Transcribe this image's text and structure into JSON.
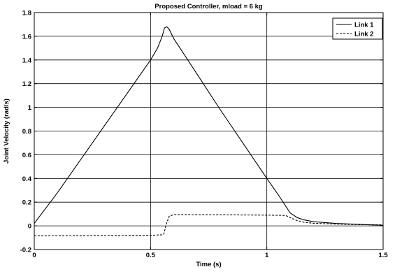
{
  "chart_data": {
    "type": "line",
    "title": "Proposed Controller, mload = 6 kg",
    "xlabel": "Time (s)",
    "ylabel": "Joint Velocity (rad/s)",
    "xlim": [
      0,
      1.5
    ],
    "ylim": [
      -0.2,
      1.8
    ],
    "xticks": [
      0,
      0.5,
      1,
      1.5
    ],
    "xtick_labels": [
      "0",
      "0.5",
      "1",
      "1.5"
    ],
    "yticks": [
      -0.2,
      0,
      0.2,
      0.4,
      0.6,
      0.8,
      1,
      1.2,
      1.4,
      1.6,
      1.8
    ],
    "ytick_labels": [
      "-0.2",
      "0",
      "0.2",
      "0.4",
      "0.6",
      "0.8",
      "1",
      "1.2",
      "1.4",
      "1.6",
      "1.8"
    ],
    "grid": true,
    "legend_position": "top-right",
    "series": [
      {
        "name": "Link 1",
        "style": "solid",
        "color": "#000000",
        "x": [
          0,
          0.05,
          0.1,
          0.2,
          0.3,
          0.4,
          0.5,
          0.53,
          0.55,
          0.56,
          0.57,
          0.58,
          0.6,
          0.7,
          0.8,
          0.9,
          1.0,
          1.05,
          1.08,
          1.1,
          1.13,
          1.16,
          1.2,
          1.3,
          1.4,
          1.5
        ],
        "y": [
          0.02,
          0.15,
          0.28,
          0.56,
          0.84,
          1.12,
          1.4,
          1.5,
          1.6,
          1.67,
          1.68,
          1.66,
          1.58,
          1.28,
          0.98,
          0.69,
          0.4,
          0.26,
          0.17,
          0.11,
          0.07,
          0.05,
          0.035,
          0.02,
          0.012,
          0.005
        ]
      },
      {
        "name": "Link 2",
        "style": "dashed",
        "color": "#000000",
        "x": [
          0,
          0.5,
          0.555,
          0.56,
          0.565,
          0.58,
          0.6,
          0.8,
          1.0,
          1.08,
          1.1,
          1.13,
          1.16,
          1.2,
          1.3,
          1.4,
          1.5
        ],
        "y": [
          -0.085,
          -0.08,
          -0.075,
          -0.05,
          0.0,
          0.08,
          0.095,
          0.093,
          0.09,
          0.088,
          0.07,
          0.045,
          0.03,
          0.022,
          0.015,
          0.01,
          0.008
        ]
      }
    ]
  }
}
